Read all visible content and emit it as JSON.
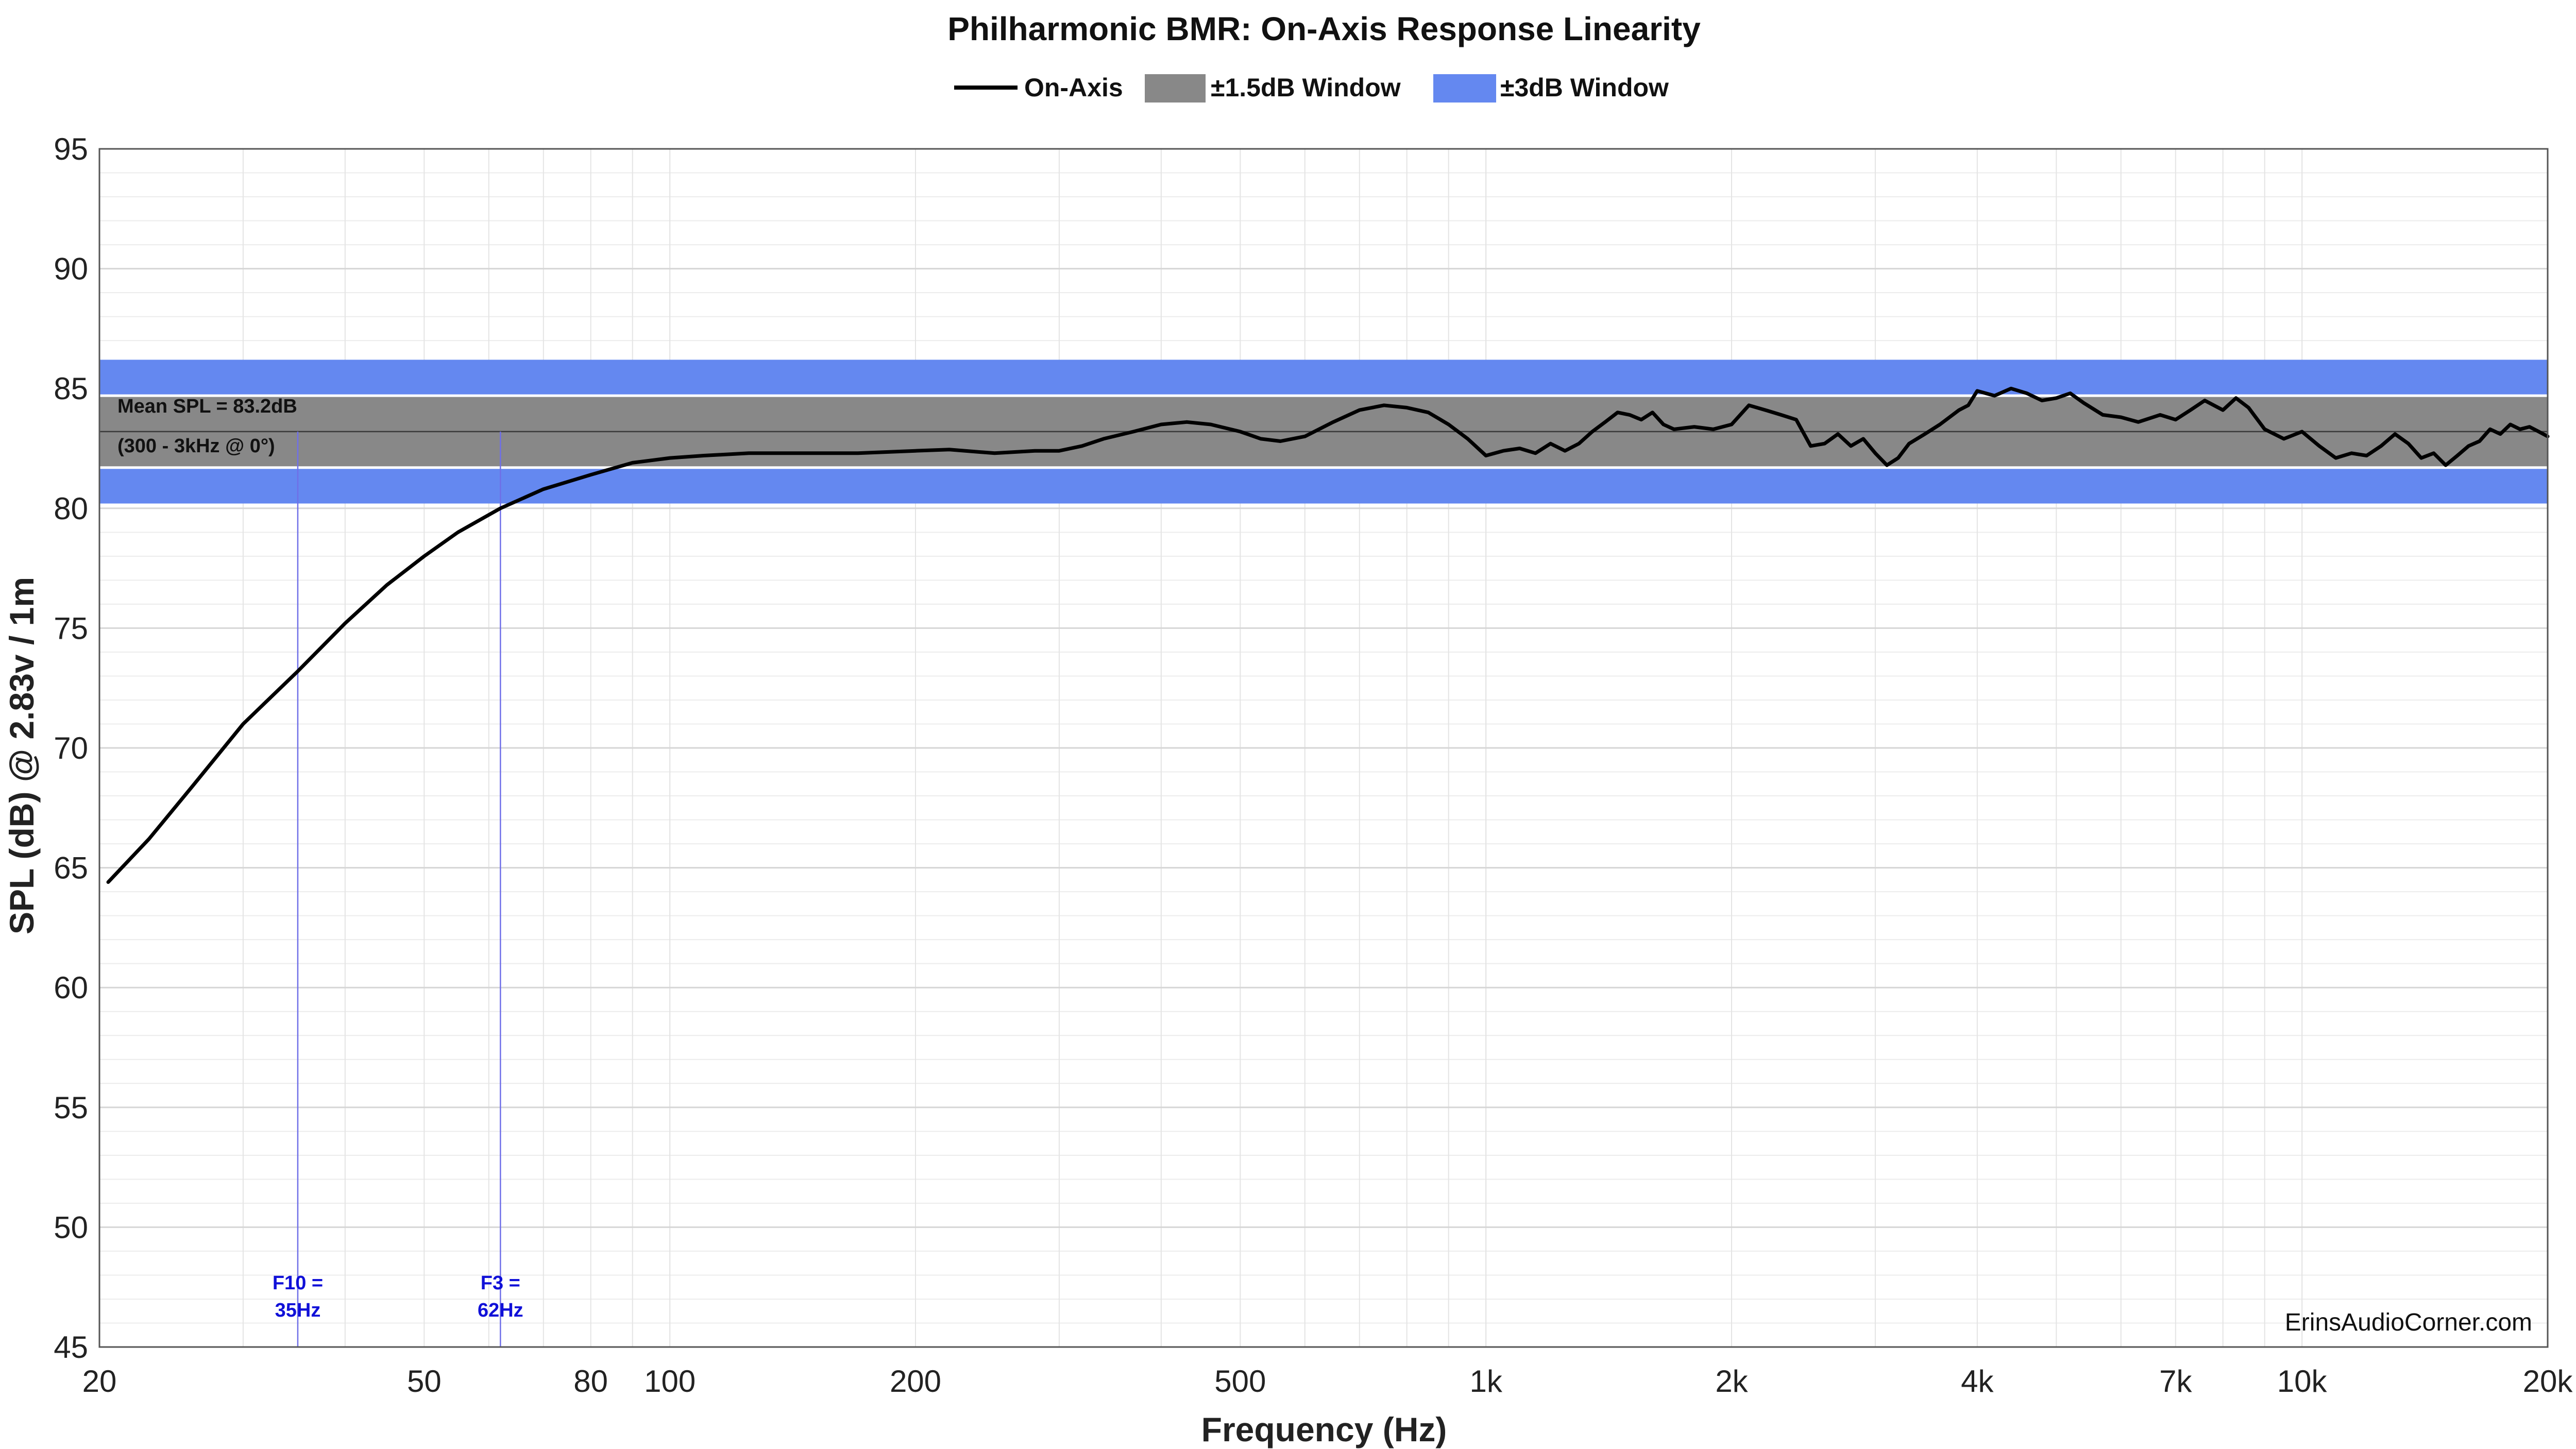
{
  "chart_data": {
    "type": "line",
    "title": "Philharmonic BMR: On-Axis Response Linearity",
    "xlabel": "Frequency (Hz)",
    "ylabel": "SPL (dB) @ 2.83v / 1m",
    "x_scale": "log",
    "xlim": [
      20,
      20000
    ],
    "ylim": [
      45,
      95
    ],
    "x_ticks": [
      {
        "value": 20,
        "label": "20"
      },
      {
        "value": 50,
        "label": "50"
      },
      {
        "value": 80,
        "label": "80"
      },
      {
        "value": 100,
        "label": "100"
      },
      {
        "value": 200,
        "label": "200"
      },
      {
        "value": 500,
        "label": "500"
      },
      {
        "value": 1000,
        "label": "1k"
      },
      {
        "value": 2000,
        "label": "2k"
      },
      {
        "value": 4000,
        "label": "4k"
      },
      {
        "value": 7000,
        "label": "7k"
      },
      {
        "value": 10000,
        "label": "10k"
      },
      {
        "value": 20000,
        "label": "20k"
      }
    ],
    "y_ticks": [
      95,
      90,
      85,
      80,
      75,
      70,
      65,
      60,
      55,
      50,
      45
    ],
    "grid": true,
    "legend": {
      "placement": "top-center",
      "entries": [
        {
          "label": "On-Axis",
          "kind": "line",
          "color": "#000000"
        },
        {
          "label": "±1.5dB Window",
          "kind": "patch",
          "color": "#888888"
        },
        {
          "label": "±3dB Window",
          "kind": "patch",
          "color": "#6488f0"
        }
      ]
    },
    "windows": [
      {
        "label": "±3dB Window",
        "color": "#6488f0",
        "low": 80.2,
        "high": 86.2
      },
      {
        "label": "±1.5dB Window",
        "color": "#888888",
        "low": 81.7,
        "high": 84.7
      }
    ],
    "mean_spl": {
      "value": 83.2,
      "line1": "Mean SPL = 83.2dB",
      "line2": "(300 - 3kHz @ 0°)"
    },
    "markers": [
      {
        "freq": 35,
        "line1": "F10 =",
        "line2": "35Hz",
        "color": "#1010d8"
      },
      {
        "freq": 62,
        "line1": "F3 =",
        "line2": "62Hz",
        "color": "#1010d8"
      }
    ],
    "watermark": "ErinsAudioCorner.com",
    "series": [
      {
        "name": "On-Axis",
        "color": "#000000",
        "points": [
          [
            20.5,
            64.4
          ],
          [
            23,
            66.2
          ],
          [
            26,
            68.4
          ],
          [
            30,
            71.0
          ],
          [
            35,
            73.2
          ],
          [
            40,
            75.2
          ],
          [
            45,
            76.8
          ],
          [
            50,
            78.0
          ],
          [
            55,
            79.0
          ],
          [
            62,
            80.0
          ],
          [
            70,
            80.8
          ],
          [
            80,
            81.4
          ],
          [
            90,
            81.9
          ],
          [
            100,
            82.1
          ],
          [
            110,
            82.2
          ],
          [
            125,
            82.3
          ],
          [
            150,
            82.3
          ],
          [
            170,
            82.3
          ],
          [
            200,
            82.4
          ],
          [
            220,
            82.45
          ],
          [
            250,
            82.3
          ],
          [
            280,
            82.4
          ],
          [
            300,
            82.4
          ],
          [
            320,
            82.6
          ],
          [
            340,
            82.9
          ],
          [
            370,
            83.2
          ],
          [
            400,
            83.5
          ],
          [
            430,
            83.6
          ],
          [
            460,
            83.5
          ],
          [
            500,
            83.2
          ],
          [
            530,
            82.9
          ],
          [
            560,
            82.8
          ],
          [
            600,
            83.0
          ],
          [
            650,
            83.6
          ],
          [
            700,
            84.1
          ],
          [
            750,
            84.3
          ],
          [
            800,
            84.2
          ],
          [
            850,
            84.0
          ],
          [
            900,
            83.5
          ],
          [
            950,
            82.9
          ],
          [
            1000,
            82.2
          ],
          [
            1050,
            82.4
          ],
          [
            1100,
            82.5
          ],
          [
            1150,
            82.3
          ],
          [
            1200,
            82.7
          ],
          [
            1250,
            82.4
          ],
          [
            1300,
            82.7
          ],
          [
            1350,
            83.2
          ],
          [
            1400,
            83.6
          ],
          [
            1450,
            84.0
          ],
          [
            1500,
            83.9
          ],
          [
            1550,
            83.7
          ],
          [
            1600,
            84.0
          ],
          [
            1650,
            83.5
          ],
          [
            1700,
            83.3
          ],
          [
            1800,
            83.4
          ],
          [
            1900,
            83.3
          ],
          [
            2000,
            83.5
          ],
          [
            2100,
            84.3
          ],
          [
            2200,
            84.1
          ],
          [
            2300,
            83.9
          ],
          [
            2400,
            83.7
          ],
          [
            2500,
            82.6
          ],
          [
            2600,
            82.7
          ],
          [
            2700,
            83.1
          ],
          [
            2800,
            82.6
          ],
          [
            2900,
            82.9
          ],
          [
            3000,
            82.3
          ],
          [
            3100,
            81.8
          ],
          [
            3200,
            82.1
          ],
          [
            3300,
            82.7
          ],
          [
            3450,
            83.1
          ],
          [
            3600,
            83.5
          ],
          [
            3800,
            84.1
          ],
          [
            3900,
            84.3
          ],
          [
            4000,
            84.9
          ],
          [
            4200,
            84.7
          ],
          [
            4400,
            85.0
          ],
          [
            4600,
            84.8
          ],
          [
            4800,
            84.5
          ],
          [
            5000,
            84.6
          ],
          [
            5200,
            84.8
          ],
          [
            5400,
            84.4
          ],
          [
            5700,
            83.9
          ],
          [
            6000,
            83.8
          ],
          [
            6300,
            83.6
          ],
          [
            6700,
            83.9
          ],
          [
            7000,
            83.7
          ],
          [
            7300,
            84.1
          ],
          [
            7600,
            84.5
          ],
          [
            8000,
            84.1
          ],
          [
            8300,
            84.6
          ],
          [
            8600,
            84.2
          ],
          [
            9000,
            83.3
          ],
          [
            9500,
            82.9
          ],
          [
            10000,
            83.2
          ],
          [
            10500,
            82.6
          ],
          [
            11000,
            82.1
          ],
          [
            11500,
            82.3
          ],
          [
            12000,
            82.2
          ],
          [
            12500,
            82.6
          ],
          [
            13000,
            83.1
          ],
          [
            13500,
            82.7
          ],
          [
            14000,
            82.1
          ],
          [
            14500,
            82.3
          ],
          [
            15000,
            81.8
          ],
          [
            15500,
            82.2
          ],
          [
            16000,
            82.6
          ],
          [
            16500,
            82.8
          ],
          [
            17000,
            83.3
          ],
          [
            17500,
            83.1
          ],
          [
            18000,
            83.5
          ],
          [
            18500,
            83.3
          ],
          [
            19000,
            83.4
          ],
          [
            19500,
            83.2
          ],
          [
            20000,
            83.0
          ]
        ]
      }
    ]
  }
}
